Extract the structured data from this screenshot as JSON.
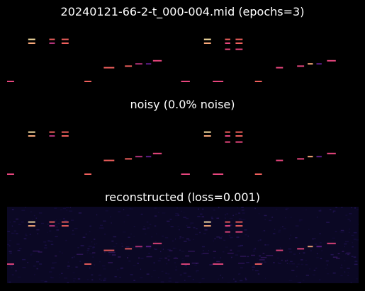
{
  "figure": {
    "title_top": "20240121-66-2-t_000-004.mid (epochs=3)",
    "title_middle": "noisy (0.0% noise)",
    "title_bottom": "reconstructed (loss=0.001)"
  },
  "colors": {
    "background": "#000000",
    "reconstructed_background": "#0b0824",
    "bright_note": "#fde3a6",
    "warm_note": "#f0605d",
    "pink_note": "#e8467e",
    "magenta_note": "#b3337a",
    "purple_note": "#5c1c8a"
  },
  "chart_data": [
    {
      "type": "heatmap",
      "title": "20240121-66-2-t_000-004.mid (epochs=3)",
      "time_range": [
        0,
        100
      ],
      "pitch_range": [
        0,
        100
      ],
      "notes": [
        {
          "t": 0,
          "d": 2,
          "p": 25,
          "v": 0.6
        },
        {
          "t": 6,
          "d": 2,
          "p": 80,
          "v": 1.0
        },
        {
          "t": 6,
          "d": 2,
          "p": 75,
          "v": 0.9
        },
        {
          "t": 12,
          "d": 1.6,
          "p": 80,
          "v": 0.75
        },
        {
          "t": 12,
          "d": 1.6,
          "p": 75,
          "v": 0.5
        },
        {
          "t": 15.5,
          "d": 2,
          "p": 80,
          "v": 0.75
        },
        {
          "t": 15.5,
          "d": 2,
          "p": 75,
          "v": 0.7
        },
        {
          "t": 22,
          "d": 2,
          "p": 25,
          "v": 0.7
        },
        {
          "t": 27.5,
          "d": 3,
          "p": 43,
          "v": 0.7
        },
        {
          "t": 33.5,
          "d": 2,
          "p": 45,
          "v": 0.7
        },
        {
          "t": 36.5,
          "d": 2,
          "p": 48,
          "v": 0.45
        },
        {
          "t": 39.5,
          "d": 1.5,
          "p": 48,
          "v": 0.3
        },
        {
          "t": 41.5,
          "d": 2.5,
          "p": 52,
          "v": 0.65
        },
        {
          "t": 49.5,
          "d": 2.5,
          "p": 25,
          "v": 0.65
        },
        {
          "t": 56,
          "d": 2,
          "p": 80,
          "v": 1.0
        },
        {
          "t": 56,
          "d": 2,
          "p": 75,
          "v": 0.9
        },
        {
          "t": 58.5,
          "d": 3,
          "p": 25,
          "v": 0.65
        },
        {
          "t": 62,
          "d": 1.5,
          "p": 80,
          "v": 0.75
        },
        {
          "t": 62,
          "d": 1.5,
          "p": 75,
          "v": 0.55
        },
        {
          "t": 62,
          "d": 1.5,
          "p": 67,
          "v": 0.55
        },
        {
          "t": 65,
          "d": 2,
          "p": 80,
          "v": 0.75
        },
        {
          "t": 65,
          "d": 2,
          "p": 75,
          "v": 0.7
        },
        {
          "t": 65,
          "d": 2,
          "p": 67,
          "v": 0.65
        },
        {
          "t": 70.5,
          "d": 2,
          "p": 25,
          "v": 0.7
        },
        {
          "t": 76.5,
          "d": 2,
          "p": 43,
          "v": 0.6
        },
        {
          "t": 82.5,
          "d": 2,
          "p": 45,
          "v": 0.6
        },
        {
          "t": 85.5,
          "d": 1.5,
          "p": 48,
          "v": 0.85
        },
        {
          "t": 88,
          "d": 1.5,
          "p": 48,
          "v": 0.25
        },
        {
          "t": 91,
          "d": 2.5,
          "p": 52,
          "v": 0.65
        }
      ]
    },
    {
      "type": "heatmap",
      "title": "noisy (0.0% noise)",
      "time_range": [
        0,
        100
      ],
      "pitch_range": [
        0,
        100
      ],
      "notes": "same as panel 1"
    },
    {
      "type": "heatmap",
      "title": "reconstructed (loss=0.001)",
      "time_range": [
        0,
        100
      ],
      "pitch_range": [
        0,
        100
      ],
      "notes": "same as panel 1 with low-level background noise"
    }
  ]
}
